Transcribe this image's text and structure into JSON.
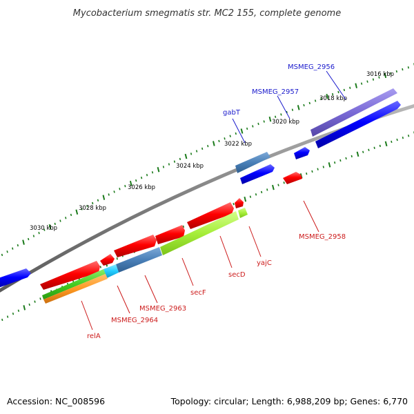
{
  "title": "Mycobacterium smegmatis str. MC2 155, complete genome",
  "footer": {
    "accession": "Accession: NC_008596",
    "summary": "Topology: circular; Length: 6,988,209 bp; Genes: 6,770"
  },
  "tick_labels": [
    "3016 kbp",
    "3018 kbp",
    "3020 kbp",
    "3022 kbp",
    "3024 kbp",
    "3026 kbp",
    "3028 kbp",
    "3030 kbp"
  ],
  "genes": [
    {
      "label": "MSMEG_2956",
      "color": "#1a1acc"
    },
    {
      "label": "MSMEG_2957",
      "color": "#1a1acc"
    },
    {
      "label": "gabT",
      "color": "#1a1acc"
    },
    {
      "label": "MSMEG_2958",
      "color": "#cc1a1a"
    },
    {
      "label": "yajC",
      "color": "#cc1a1a"
    },
    {
      "label": "secD",
      "color": "#cc1a1a"
    },
    {
      "label": "secF",
      "color": "#cc1a1a"
    },
    {
      "label": "MSMEG_2963",
      "color": "#cc1a1a"
    },
    {
      "label": "MSMEG_2964",
      "color": "#cc1a1a"
    },
    {
      "label": "relA",
      "color": "#cc1a1a"
    }
  ],
  "colors": {
    "backbone": "#808080",
    "tick": "#1a7a1a",
    "cds_forward": "#0000ff",
    "cds_reverse": "#ff0000",
    "feature_purple": "#7a6ad6",
    "feature_steel": "#4a80b8",
    "feature_lime": "#a6ee3a",
    "feature_green": "#44cc22",
    "feature_orange": "#ff9922",
    "feature_cyan": "#22ccff"
  }
}
